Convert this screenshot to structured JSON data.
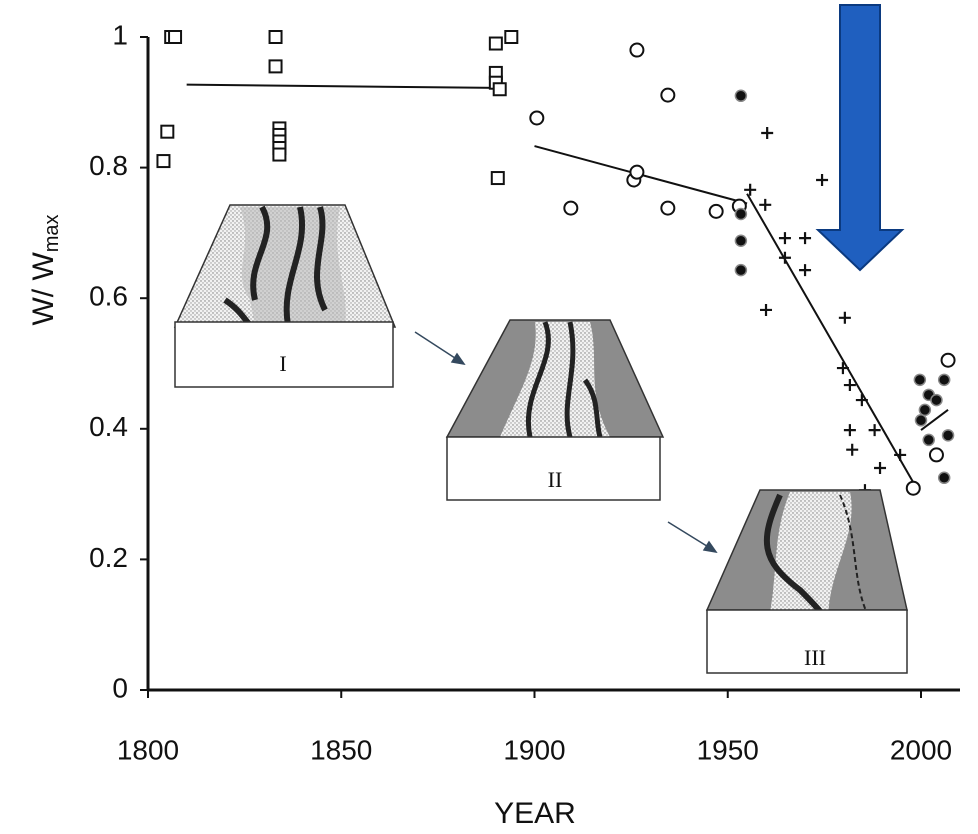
{
  "chart_data": {
    "type": "scatter",
    "xlabel": "YEAR",
    "ylabel": "W/ W",
    "ylabel_subscript": "max",
    "xlim": [
      1800,
      2010
    ],
    "ylim": [
      0,
      1
    ],
    "xticks": [
      1800,
      1850,
      1900,
      1950,
      2000
    ],
    "yticks": [
      0,
      0.2,
      0.4,
      0.6,
      0.8,
      1
    ],
    "color": "#111111",
    "series": [
      {
        "marker": "square",
        "x": [
          1806,
          1807,
          1805,
          1804,
          1833,
          1833,
          1834,
          1834,
          1834,
          1834,
          1834,
          1890,
          1894,
          1890,
          1890,
          1891,
          1890.5
        ],
        "values": [
          1.0,
          1.0,
          0.855,
          0.81,
          1.0,
          0.955,
          0.86,
          0.85,
          0.84,
          0.83,
          0.82,
          0.99,
          1.0,
          0.945,
          0.93,
          0.92,
          0.784
        ]
      },
      {
        "marker": "circle-open",
        "x": [
          1900.6,
          1909.4,
          1926.5,
          1934.5,
          1925.7,
          1926.5,
          1934.5,
          1947,
          1953,
          1998,
          2007,
          2004
        ],
        "values": [
          0.876,
          0.738,
          0.98,
          0.911,
          0.781,
          0.793,
          0.738,
          0.733,
          0.741,
          0.309,
          0.505,
          0.36
        ]
      },
      {
        "marker": "circle-filled",
        "x": [
          1953.4,
          1953.4,
          1953.4,
          1953.4,
          1999.7,
          2002,
          2006,
          2004,
          2001,
          2007,
          2006,
          2000,
          2002
        ],
        "values": [
          0.91,
          0.729,
          0.688,
          0.643,
          0.475,
          0.452,
          0.475,
          0.444,
          0.429,
          0.39,
          0.325,
          0.413,
          0.383
        ]
      },
      {
        "marker": "plus",
        "x": [
          1960.2,
          1974.4,
          1955.8,
          1959.7,
          1964.8,
          1970,
          1964.8,
          1970,
          1959.9,
          1980.3,
          1979.8,
          1981.6,
          1984.7,
          1981.6,
          1988,
          1982.2,
          1989.4,
          1994.6,
          1985.5
        ],
        "values": [
          0.853,
          0.781,
          0.766,
          0.743,
          0.692,
          0.692,
          0.662,
          0.643,
          0.582,
          0.57,
          0.493,
          0.467,
          0.444,
          0.398,
          0.398,
          0.368,
          0.34,
          0.36,
          0.306
        ]
      }
    ],
    "trend_lines": [
      {
        "x": [
          1810,
          1890
        ],
        "values": [
          0.927,
          0.922
        ]
      },
      {
        "x": [
          1900,
          1955
        ],
        "values": [
          0.833,
          0.745
        ]
      },
      {
        "x": [
          1955,
          1998
        ],
        "values": [
          0.76,
          0.318
        ]
      },
      {
        "x": [
          2000,
          2007
        ],
        "values": [
          0.398,
          0.429
        ]
      }
    ],
    "insets": [
      "I",
      "II",
      "III"
    ]
  }
}
